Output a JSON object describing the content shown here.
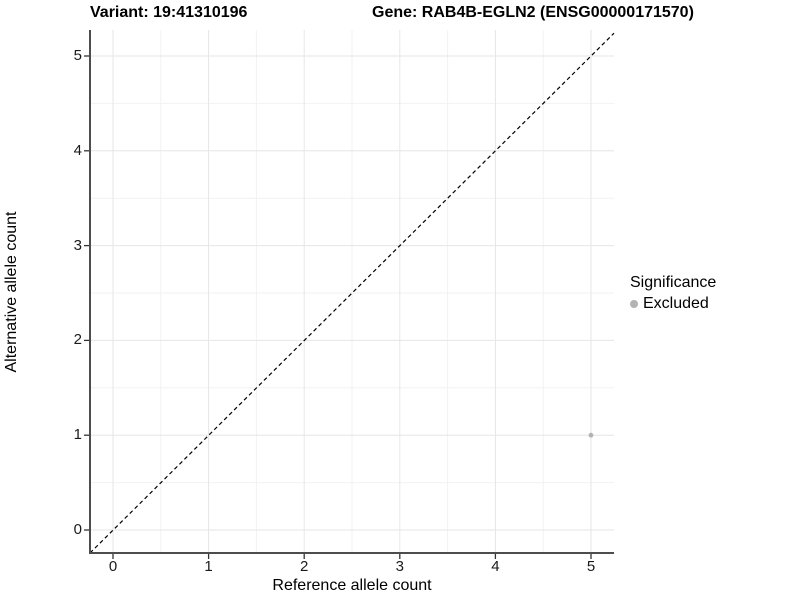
{
  "header": {
    "variant_title": "Variant: 19:41310196",
    "gene_title": "Gene: RAB4B-EGLN2 (ENSG00000171570)"
  },
  "legend": {
    "title": "Significance",
    "items": [
      {
        "label": "Excluded",
        "color": "#b3b3b3"
      }
    ]
  },
  "chart_data": {
    "type": "scatter",
    "title": "",
    "xlabel": "Reference allele count",
    "ylabel": "Alternative allele count",
    "xlim": [
      -0.25,
      5.25
    ],
    "ylim": [
      -0.25,
      5.25
    ],
    "x_ticks": [
      0,
      1,
      2,
      3,
      4,
      5
    ],
    "y_ticks": [
      0,
      1,
      2,
      3,
      4,
      5
    ],
    "x_minor_ticks": [
      0.5,
      1.5,
      2.5,
      3.5,
      4.5
    ],
    "y_minor_ticks": [
      0.5,
      1.5,
      2.5,
      3.5,
      4.5
    ],
    "grid": true,
    "legend_position": "right",
    "series": [
      {
        "name": "Excluded",
        "color": "#b3b3b3",
        "points": [
          {
            "x": 5,
            "y": 1
          }
        ]
      }
    ],
    "reference_line": {
      "kind": "identity",
      "style": "dashed",
      "color": "#000000"
    }
  },
  "colors": {
    "background": "#ffffff",
    "grid_major": "#e6e6e6",
    "grid_minor": "#f2f2f2",
    "axis_line": "#4d4d4d",
    "tick_mark": "#333333",
    "point": "#b3b3b3"
  }
}
